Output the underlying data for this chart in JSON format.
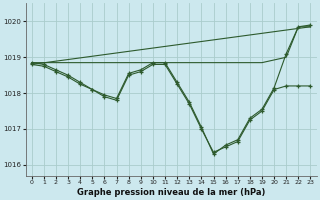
{
  "bg_color": "#cce8ee",
  "grid_color": "#aacccc",
  "line_color": "#2d5a2d",
  "xlabel": "Graphe pression niveau de la mer (hPa)",
  "ylim": [
    1015.7,
    1020.5
  ],
  "xlim": [
    -0.5,
    23.5
  ],
  "yticks": [
    1016,
    1017,
    1018,
    1019,
    1020
  ],
  "xticks": [
    0,
    1,
    2,
    3,
    4,
    5,
    6,
    7,
    8,
    9,
    10,
    11,
    12,
    13,
    14,
    15,
    16,
    17,
    18,
    19,
    20,
    21,
    22,
    23
  ],
  "line_diag": {
    "x": [
      0,
      23
    ],
    "y": [
      1018.8,
      1019.85
    ]
  },
  "line_flat": {
    "x": [
      0,
      2,
      10,
      14,
      19,
      21,
      22,
      23
    ],
    "y": [
      1018.85,
      1018.85,
      1018.85,
      1018.85,
      1018.85,
      1019.0,
      1019.85,
      1019.85
    ]
  },
  "line_main": {
    "x": [
      0,
      1,
      2,
      3,
      4,
      5,
      6,
      7,
      8,
      9,
      10,
      11,
      12,
      13,
      14,
      15,
      16,
      17,
      18,
      19,
      20,
      21,
      22,
      23
    ],
    "y": [
      1018.85,
      1018.8,
      1018.65,
      1018.5,
      1018.3,
      1018.1,
      1017.95,
      1017.85,
      1018.55,
      1018.65,
      1018.85,
      1018.85,
      1018.3,
      1017.75,
      1017.05,
      1016.3,
      1016.55,
      1016.7,
      1017.3,
      1017.55,
      1018.15,
      1019.1,
      1019.85,
      1019.9
    ]
  },
  "line_second": {
    "x": [
      0,
      1,
      2,
      3,
      4,
      5,
      6,
      7,
      8,
      9,
      10,
      11,
      12,
      13,
      14,
      15,
      16,
      17,
      18,
      19,
      20,
      21,
      22,
      23
    ],
    "y": [
      1018.8,
      1018.75,
      1018.6,
      1018.45,
      1018.25,
      1018.1,
      1017.9,
      1017.8,
      1018.5,
      1018.6,
      1018.8,
      1018.8,
      1018.25,
      1017.7,
      1017.0,
      1016.35,
      1016.5,
      1016.65,
      1017.25,
      1017.5,
      1018.1,
      1018.2,
      1018.2,
      1018.2
    ]
  }
}
